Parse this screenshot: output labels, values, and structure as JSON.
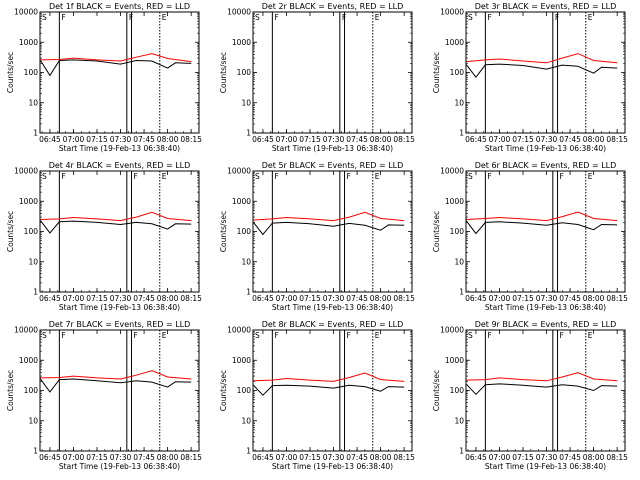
{
  "time_tick_labels": [
    "06:45",
    "07:00",
    "07:15",
    "07:30",
    "07:45",
    "08:00",
    "08:15"
  ],
  "y_tick_labels": [
    "1",
    "10",
    "100",
    "1000",
    "10000"
  ],
  "ylabel": "Counts/sec",
  "xlabel": "Start Time (19-Feb-13 06:38:40)",
  "colors": {
    "events": "#000000",
    "lld": "#ff0000",
    "background": "#ffffff"
  },
  "chart_data": [
    {
      "type": "line",
      "title": "Det 1f BLACK = Events, RED = LLD",
      "ylim": [
        1,
        10000
      ],
      "yscale": "log",
      "xlim": [
        "06:38:40",
        "08:20:00"
      ],
      "markers": [
        {
          "time": "06:38:40",
          "label": "S"
        },
        {
          "time": "06:51",
          "label": "F"
        },
        {
          "time": "07:34",
          "label": "F"
        },
        {
          "time": "07:37",
          "label": ""
        },
        {
          "time": "07:55",
          "label": "E"
        }
      ],
      "series": [
        {
          "name": "Events",
          "times": [
            "06:39",
            "06:45",
            "06:51",
            "07:00",
            "07:15",
            "07:30",
            "07:40",
            "07:50",
            "08:00",
            "08:05",
            "08:15"
          ],
          "values": [
            250,
            80,
            250,
            260,
            240,
            190,
            250,
            240,
            140,
            210,
            200
          ]
        },
        {
          "name": "LLD",
          "times": [
            "06:39",
            "06:51",
            "07:00",
            "07:15",
            "07:30",
            "07:40",
            "07:50",
            "08:00",
            "08:15"
          ],
          "values": [
            260,
            270,
            300,
            260,
            240,
            320,
            420,
            290,
            230
          ]
        }
      ]
    },
    {
      "type": "line",
      "title": "Det 2r BLACK = Events, RED = LLD",
      "ylim": [
        1,
        10000
      ],
      "yscale": "log",
      "xlim": [
        "06:38:40",
        "08:20:00"
      ],
      "markers": [
        {
          "time": "06:38:40",
          "label": "S"
        },
        {
          "time": "06:51",
          "label": "F"
        },
        {
          "time": "07:34",
          "label": "F"
        },
        {
          "time": "07:37",
          "label": ""
        },
        {
          "time": "07:55",
          "label": "E"
        }
      ],
      "series": []
    },
    {
      "type": "line",
      "title": "Det 3r BLACK = Events, RED = LLD",
      "ylim": [
        1,
        10000
      ],
      "yscale": "log",
      "xlim": [
        "06:38:40",
        "08:20:00"
      ],
      "markers": [
        {
          "time": "06:38:40",
          "label": "S"
        },
        {
          "time": "06:51",
          "label": "F"
        },
        {
          "time": "07:34",
          "label": "F"
        },
        {
          "time": "07:37",
          "label": ""
        },
        {
          "time": "07:55",
          "label": "E"
        }
      ],
      "series": [
        {
          "name": "Events",
          "times": [
            "06:39",
            "06:45",
            "06:51",
            "07:00",
            "07:15",
            "07:30",
            "07:40",
            "07:50",
            "08:00",
            "08:05",
            "08:15"
          ],
          "values": [
            180,
            70,
            180,
            190,
            170,
            130,
            175,
            160,
            95,
            150,
            140
          ]
        },
        {
          "name": "LLD",
          "times": [
            "06:39",
            "06:51",
            "07:00",
            "07:15",
            "07:30",
            "07:40",
            "07:50",
            "08:00",
            "08:15"
          ],
          "values": [
            230,
            260,
            280,
            240,
            210,
            300,
            420,
            250,
            210
          ]
        }
      ]
    },
    {
      "type": "line",
      "title": "Det 4r BLACK = Events, RED = LLD",
      "ylim": [
        1,
        10000
      ],
      "yscale": "log",
      "xlim": [
        "06:38:40",
        "08:20:00"
      ],
      "markers": [
        {
          "time": "06:38:40",
          "label": "S"
        },
        {
          "time": "06:51",
          "label": "F"
        },
        {
          "time": "07:34",
          "label": ""
        },
        {
          "time": "07:37",
          "label": "F"
        },
        {
          "time": "07:55",
          "label": "E"
        }
      ],
      "series": [
        {
          "name": "Events",
          "times": [
            "06:39",
            "06:45",
            "06:51",
            "07:00",
            "07:15",
            "07:30",
            "07:40",
            "07:50",
            "08:00",
            "08:05",
            "08:15"
          ],
          "values": [
            230,
            90,
            210,
            220,
            200,
            170,
            200,
            180,
            120,
            180,
            175
          ]
        },
        {
          "name": "LLD",
          "times": [
            "06:39",
            "06:51",
            "07:00",
            "07:15",
            "07:30",
            "07:40",
            "07:50",
            "08:00",
            "08:15"
          ],
          "values": [
            250,
            260,
            290,
            260,
            230,
            300,
            430,
            270,
            230
          ]
        }
      ]
    },
    {
      "type": "line",
      "title": "Det 5r BLACK = Events, RED = LLD",
      "ylim": [
        1,
        10000
      ],
      "yscale": "log",
      "xlim": [
        "06:38:40",
        "08:20:00"
      ],
      "markers": [
        {
          "time": "06:38:40",
          "label": "S"
        },
        {
          "time": "06:51",
          "label": "F"
        },
        {
          "time": "07:34",
          "label": ""
        },
        {
          "time": "07:37",
          "label": "F"
        },
        {
          "time": "07:55",
          "label": "E"
        }
      ],
      "series": [
        {
          "name": "Events",
          "times": [
            "06:39",
            "06:45",
            "06:51",
            "07:00",
            "07:15",
            "07:30",
            "07:40",
            "07:50",
            "08:00",
            "08:05",
            "08:15"
          ],
          "values": [
            200,
            80,
            190,
            200,
            180,
            150,
            185,
            160,
            110,
            165,
            160
          ]
        },
        {
          "name": "LLD",
          "times": [
            "06:39",
            "06:51",
            "07:00",
            "07:15",
            "07:30",
            "07:40",
            "07:50",
            "08:00",
            "08:15"
          ],
          "values": [
            240,
            260,
            290,
            260,
            230,
            300,
            430,
            270,
            230
          ]
        }
      ]
    },
    {
      "type": "line",
      "title": "Det 6r BLACK = Events, RED = LLD",
      "ylim": [
        1,
        10000
      ],
      "yscale": "log",
      "xlim": [
        "06:38:40",
        "08:20:00"
      ],
      "markers": [
        {
          "time": "06:38:40",
          "label": "S"
        },
        {
          "time": "06:51",
          "label": "F"
        },
        {
          "time": "07:34",
          "label": ""
        },
        {
          "time": "07:37",
          "label": "F"
        },
        {
          "time": "07:55",
          "label": "E"
        }
      ],
      "series": [
        {
          "name": "Events",
          "times": [
            "06:39",
            "06:45",
            "06:51",
            "07:00",
            "07:15",
            "07:30",
            "07:40",
            "07:50",
            "08:00",
            "08:05",
            "08:15"
          ],
          "values": [
            220,
            85,
            200,
            210,
            190,
            160,
            195,
            170,
            115,
            170,
            165
          ]
        },
        {
          "name": "LLD",
          "times": [
            "06:39",
            "06:51",
            "07:00",
            "07:15",
            "07:30",
            "07:40",
            "07:50",
            "08:00",
            "08:15"
          ],
          "values": [
            250,
            270,
            290,
            260,
            230,
            310,
            440,
            270,
            230
          ]
        }
      ]
    },
    {
      "type": "line",
      "title": "Det 7r BLACK = Events, RED = LLD",
      "ylim": [
        1,
        10000
      ],
      "yscale": "log",
      "xlim": [
        "06:38:40",
        "08:20:00"
      ],
      "markers": [
        {
          "time": "06:38:40",
          "label": "S"
        },
        {
          "time": "06:51",
          "label": "F"
        },
        {
          "time": "07:34",
          "label": ""
        },
        {
          "time": "07:37",
          "label": "F"
        },
        {
          "time": "07:55",
          "label": "E"
        }
      ],
      "series": [
        {
          "name": "Events",
          "times": [
            "06:39",
            "06:45",
            "06:51",
            "07:00",
            "07:15",
            "07:30",
            "07:40",
            "07:50",
            "08:00",
            "08:05",
            "08:15"
          ],
          "values": [
            240,
            90,
            230,
            240,
            210,
            180,
            210,
            190,
            130,
            195,
            190
          ]
        },
        {
          "name": "LLD",
          "times": [
            "06:39",
            "06:51",
            "07:00",
            "07:15",
            "07:30",
            "07:40",
            "07:50",
            "08:00",
            "08:15"
          ],
          "values": [
            260,
            270,
            300,
            260,
            240,
            320,
            450,
            280,
            240
          ]
        }
      ]
    },
    {
      "type": "line",
      "title": "Det 8r BLACK = Events, RED = LLD",
      "ylim": [
        1,
        10000
      ],
      "yscale": "log",
      "xlim": [
        "06:38:40",
        "08:20:00"
      ],
      "markers": [
        {
          "time": "06:38:40",
          "label": "S"
        },
        {
          "time": "06:51",
          "label": "F"
        },
        {
          "time": "07:34",
          "label": ""
        },
        {
          "time": "07:37",
          "label": "F"
        },
        {
          "time": "07:55",
          "label": "E"
        }
      ],
      "series": [
        {
          "name": "Events",
          "times": [
            "06:39",
            "06:45",
            "06:51",
            "07:00",
            "07:15",
            "07:30",
            "07:40",
            "07:50",
            "08:00",
            "08:05",
            "08:15"
          ],
          "values": [
            150,
            70,
            145,
            150,
            140,
            120,
            150,
            135,
            95,
            135,
            130
          ]
        },
        {
          "name": "LLD",
          "times": [
            "06:39",
            "06:51",
            "07:00",
            "07:15",
            "07:30",
            "07:40",
            "07:50",
            "08:00",
            "08:15"
          ],
          "values": [
            210,
            220,
            250,
            220,
            200,
            270,
            380,
            230,
            200
          ]
        }
      ]
    },
    {
      "type": "line",
      "title": "Det 9r BLACK = Events, RED = LLD",
      "ylim": [
        1,
        10000
      ],
      "yscale": "log",
      "xlim": [
        "06:38:40",
        "08:20:00"
      ],
      "markers": [
        {
          "time": "06:38:40",
          "label": "S"
        },
        {
          "time": "06:51",
          "label": "F"
        },
        {
          "time": "07:34",
          "label": ""
        },
        {
          "time": "07:37",
          "label": "F"
        },
        {
          "time": "07:55",
          "label": "E"
        }
      ],
      "series": [
        {
          "name": "Events",
          "times": [
            "06:39",
            "06:45",
            "06:51",
            "07:00",
            "07:15",
            "07:30",
            "07:40",
            "07:50",
            "08:00",
            "08:05",
            "08:15"
          ],
          "values": [
            160,
            75,
            155,
            165,
            150,
            130,
            155,
            140,
            100,
            145,
            140
          ]
        },
        {
          "name": "LLD",
          "times": [
            "06:39",
            "06:51",
            "07:00",
            "07:15",
            "07:30",
            "07:40",
            "07:50",
            "08:00",
            "08:15"
          ],
          "values": [
            220,
            230,
            260,
            230,
            210,
            280,
            390,
            240,
            210
          ]
        }
      ]
    }
  ]
}
